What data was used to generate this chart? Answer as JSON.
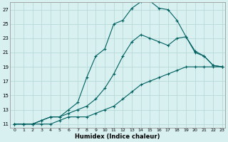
{
  "xlabel": "Humidex (Indice chaleur)",
  "bg_color": "#d8f0f0",
  "grid_color": "#b8dada",
  "line_color": "#006060",
  "xlim": [
    -0.5,
    23.3
  ],
  "ylim": [
    10.5,
    28.0
  ],
  "xticks": [
    0,
    1,
    2,
    3,
    4,
    5,
    6,
    7,
    8,
    9,
    10,
    11,
    12,
    13,
    14,
    15,
    16,
    17,
    18,
    19,
    20,
    21,
    22,
    23
  ],
  "yticks": [
    11,
    13,
    15,
    17,
    19,
    21,
    23,
    25,
    27
  ],
  "line1_x": [
    0,
    1,
    2,
    3,
    4,
    5,
    6,
    7,
    8,
    9,
    10,
    11,
    12,
    13,
    14,
    15,
    16,
    17,
    18,
    19,
    20,
    21,
    22,
    23
  ],
  "line1_y": [
    11,
    11,
    11,
    11.5,
    12,
    12,
    13,
    14,
    17.5,
    20.5,
    21.5,
    25,
    25.5,
    27.2,
    28.1,
    28.2,
    27.2,
    27.0,
    25.5,
    23.2,
    21.2,
    20.5,
    19.2,
    19.0
  ],
  "line2_x": [
    0,
    1,
    2,
    3,
    4,
    5,
    6,
    7,
    8,
    9,
    10,
    11,
    12,
    13,
    14,
    15,
    16,
    17,
    18,
    19,
    20,
    21,
    22,
    23
  ],
  "line2_y": [
    11,
    11,
    11,
    11.5,
    12,
    12,
    12.5,
    13.0,
    13.5,
    14.5,
    16.0,
    18.0,
    20.5,
    22.5,
    23.5,
    23.0,
    22.5,
    22.0,
    23.0,
    23.2,
    21.0,
    20.5,
    19.2,
    19.0
  ],
  "line3_x": [
    0,
    1,
    2,
    3,
    4,
    5,
    6,
    7,
    8,
    9,
    10,
    11,
    12,
    13,
    14,
    15,
    16,
    17,
    18,
    19,
    20,
    21,
    22,
    23
  ],
  "line3_y": [
    11,
    11,
    11,
    11,
    11,
    11.5,
    12,
    12,
    12,
    12.5,
    13.0,
    13.5,
    14.5,
    15.5,
    16.5,
    17.0,
    17.5,
    18.0,
    18.5,
    19.0,
    19.0,
    19.0,
    19.0,
    19.0
  ]
}
